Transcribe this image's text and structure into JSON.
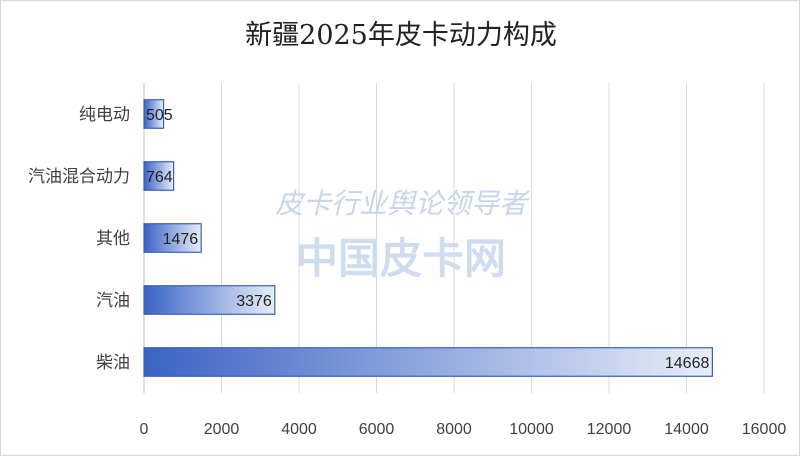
{
  "chart_data": {
    "type": "bar",
    "orientation": "horizontal",
    "title": "新疆2025年皮卡动力构成",
    "categories": [
      "纯电动",
      "汽油混合动力",
      "其他",
      "汽油",
      "柴油"
    ],
    "values": [
      505,
      764,
      1476,
      3376,
      14668
    ],
    "xlim": [
      0,
      16000
    ],
    "xticks": [
      0,
      2000,
      4000,
      6000,
      8000,
      10000,
      12000,
      14000,
      16000
    ],
    "grid": "vertical",
    "data_labels": true,
    "legend": "none",
    "bar_color_start": "#3a63c4",
    "bar_color_end": "#e8eef9",
    "bar_border_color": "#3a5fb8"
  },
  "watermark": {
    "line1": "皮卡行业舆论领导者",
    "line2": "中国皮卡网"
  }
}
